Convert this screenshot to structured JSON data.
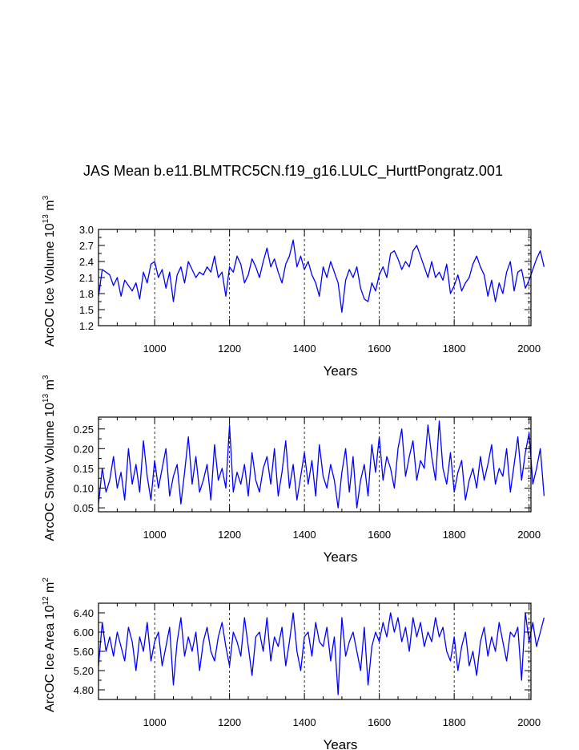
{
  "chart_data": [
    {
      "type": "line",
      "title": "JAS Mean b.e11.BLMTRC5CN.f19_g16.LULC_HurttPongratz.001",
      "xlabel": "Years",
      "ylabel": "ArcOC Ice Volume 10",
      "ylabel_exp": "13",
      "ylabel_unit": " m",
      "ylabel_unit_exp": "3",
      "xlim": [
        850,
        2005
      ],
      "ylim": [
        1.2,
        3.0
      ],
      "xticks": [
        "1000",
        "1200",
        "1400",
        "1600",
        "1800",
        "2000"
      ],
      "yticks": [
        "1.2",
        "1.5",
        "1.8",
        "2.1",
        "2.4",
        "2.7",
        "3.0"
      ],
      "series": [
        {
          "name": "Ice Volume",
          "color": "#0000ff",
          "x_start": 850,
          "x_step": 10,
          "values": [
            1.75,
            2.25,
            2.2,
            2.15,
            1.95,
            2.1,
            1.75,
            2.05,
            1.95,
            1.85,
            2.0,
            1.7,
            2.2,
            2.0,
            2.35,
            2.4,
            2.1,
            2.25,
            1.9,
            2.2,
            1.65,
            2.15,
            2.3,
            2.0,
            2.4,
            2.25,
            2.1,
            2.2,
            2.15,
            2.3,
            2.2,
            2.5,
            2.1,
            2.2,
            1.75,
            2.3,
            2.2,
            2.5,
            2.35,
            2.0,
            2.15,
            2.45,
            2.3,
            2.1,
            2.4,
            2.65,
            2.3,
            2.45,
            2.2,
            2.0,
            2.35,
            2.5,
            2.8,
            2.3,
            2.5,
            2.25,
            2.4,
            2.15,
            2.0,
            1.75,
            2.3,
            2.1,
            2.4,
            2.2,
            2.0,
            1.45,
            2.05,
            2.25,
            2.1,
            2.3,
            1.9,
            1.7,
            1.65,
            2.0,
            1.85,
            2.15,
            2.3,
            2.1,
            2.55,
            2.6,
            2.45,
            2.25,
            2.4,
            2.3,
            2.6,
            2.7,
            2.5,
            2.3,
            2.1,
            2.4,
            2.1,
            2.2,
            2.05,
            2.35,
            1.8,
            1.95,
            2.15,
            1.85,
            2.0,
            2.1,
            2.35,
            2.5,
            2.3,
            2.15,
            1.75,
            2.05,
            1.65,
            2.0,
            1.8,
            2.2,
            2.4,
            1.85,
            2.2,
            2.25,
            1.9,
            2.05,
            2.25,
            2.45,
            2.6,
            2.3
          ]
        }
      ]
    },
    {
      "type": "line",
      "xlabel": "Years",
      "ylabel": "ArcOC Snow Volume 10",
      "ylabel_exp": "13",
      "ylabel_unit": " m",
      "ylabel_unit_exp": "3",
      "xlim": [
        850,
        2005
      ],
      "ylim": [
        0.04,
        0.28
      ],
      "xticks": [
        "1000",
        "1200",
        "1400",
        "1600",
        "1800",
        "2000"
      ],
      "yticks": [
        "0.05",
        "0.10",
        "0.15",
        "0.20",
        "0.25"
      ],
      "series": [
        {
          "name": "Snow Volume",
          "color": "#0000ff",
          "x_start": 850,
          "x_step": 10,
          "values": [
            0.06,
            0.15,
            0.09,
            0.12,
            0.18,
            0.1,
            0.14,
            0.07,
            0.2,
            0.11,
            0.16,
            0.09,
            0.22,
            0.13,
            0.07,
            0.17,
            0.1,
            0.15,
            0.2,
            0.08,
            0.13,
            0.16,
            0.06,
            0.14,
            0.23,
            0.11,
            0.18,
            0.09,
            0.12,
            0.16,
            0.07,
            0.21,
            0.12,
            0.15,
            0.1,
            0.26,
            0.09,
            0.14,
            0.11,
            0.16,
            0.08,
            0.19,
            0.12,
            0.09,
            0.15,
            0.18,
            0.11,
            0.2,
            0.08,
            0.14,
            0.22,
            0.1,
            0.16,
            0.07,
            0.13,
            0.19,
            0.11,
            0.17,
            0.08,
            0.21,
            0.13,
            0.1,
            0.16,
            0.12,
            0.05,
            0.14,
            0.2,
            0.09,
            0.18,
            0.05,
            0.12,
            0.16,
            0.08,
            0.21,
            0.14,
            0.23,
            0.12,
            0.18,
            0.15,
            0.1,
            0.2,
            0.25,
            0.13,
            0.18,
            0.22,
            0.12,
            0.17,
            0.15,
            0.26,
            0.18,
            0.12,
            0.27,
            0.15,
            0.11,
            0.19,
            0.09,
            0.14,
            0.17,
            0.07,
            0.12,
            0.15,
            0.1,
            0.18,
            0.12,
            0.16,
            0.21,
            0.11,
            0.15,
            0.13,
            0.2,
            0.09,
            0.16,
            0.23,
            0.12,
            0.19,
            0.24,
            0.11,
            0.15,
            0.2,
            0.08
          ]
        }
      ]
    },
    {
      "type": "line",
      "xlabel": "Years",
      "ylabel": "ArcOC Ice Area 10",
      "ylabel_exp": "12",
      "ylabel_unit": " m",
      "ylabel_unit_exp": "2",
      "xlim": [
        850,
        2005
      ],
      "ylim": [
        4.6,
        6.6
      ],
      "xticks": [
        "1000",
        "1200",
        "1400",
        "1600",
        "1800",
        "2000"
      ],
      "yticks": [
        "4.80",
        "5.20",
        "5.60",
        "6.00",
        "6.40"
      ],
      "series": [
        {
          "name": "Ice Area",
          "color": "#0000ff",
          "x_start": 850,
          "x_step": 10,
          "values": [
            5.3,
            6.2,
            5.6,
            5.9,
            5.5,
            6.0,
            5.7,
            5.4,
            6.1,
            5.8,
            5.2,
            5.9,
            5.6,
            6.2,
            5.4,
            5.8,
            6.0,
            5.3,
            5.7,
            6.1,
            4.9,
            5.8,
            6.3,
            5.5,
            5.9,
            5.6,
            6.0,
            5.2,
            5.8,
            6.1,
            5.6,
            5.4,
            5.9,
            6.2,
            5.7,
            5.3,
            6.0,
            5.8,
            5.5,
            6.3,
            5.7,
            5.1,
            5.9,
            6.0,
            5.6,
            6.3,
            5.4,
            5.9,
            5.7,
            6.1,
            5.3,
            5.8,
            6.4,
            5.6,
            5.2,
            5.9,
            6.0,
            5.5,
            6.2,
            5.8,
            5.7,
            6.1,
            5.4,
            5.9,
            4.7,
            6.3,
            5.5,
            5.8,
            6.0,
            5.6,
            5.2,
            6.1,
            4.9,
            5.7,
            6.0,
            5.8,
            6.2,
            5.9,
            6.4,
            6.0,
            6.3,
            5.8,
            6.1,
            5.6,
            6.3,
            5.9,
            6.2,
            5.7,
            6.0,
            5.8,
            6.3,
            5.9,
            6.1,
            5.6,
            5.4,
            5.9,
            5.2,
            5.7,
            6.0,
            5.3,
            5.6,
            5.1,
            5.8,
            6.1,
            5.5,
            5.9,
            5.6,
            6.2,
            5.8,
            5.4,
            6.0,
            5.9,
            6.1,
            5.0,
            6.4,
            5.8,
            6.2,
            5.7,
            6.0,
            6.3
          ]
        }
      ]
    }
  ]
}
